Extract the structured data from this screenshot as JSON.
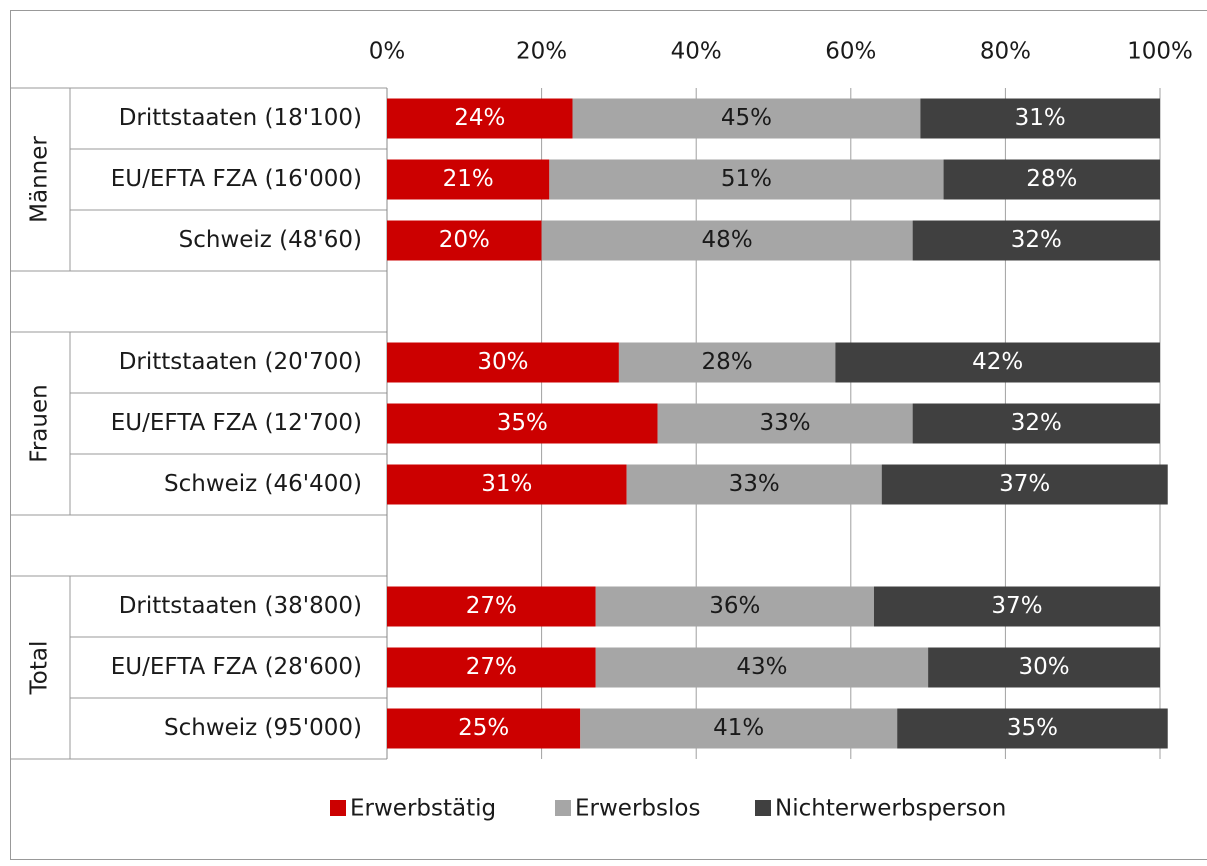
{
  "chart_data": {
    "type": "stacked_barh",
    "categories": [
      "Drittstaaten (18'100)",
      "EU/EFTA FZA (16'000)",
      "Schweiz (48'60)",
      null,
      "Drittstaaten (20'700)",
      "EU/EFTA FZA (12'700)",
      "Schweiz (46'400)",
      null,
      "Drittstaaten (38'800)",
      "EU/EFTA FZA (28'600)",
      "Schweiz (95'000)"
    ],
    "groups": [
      "Männer",
      "Frauen",
      "Total"
    ],
    "series": [
      {
        "name": "Erwerbstätig",
        "color": "#cc0000",
        "label_color": "#ffffff",
        "values": [
          24,
          21,
          20,
          null,
          30,
          35,
          31,
          null,
          27,
          27,
          25
        ],
        "value_labels": [
          "24%",
          "21%",
          "20%",
          null,
          "30%",
          "35%",
          "31%",
          null,
          "27%",
          "27%",
          "25%"
        ]
      },
      {
        "name": "Erwerbslos",
        "color": "#a6a6a6",
        "label_color": "#1a1a1a",
        "values": [
          45,
          51,
          48,
          null,
          28,
          33,
          33,
          null,
          36,
          43,
          41
        ],
        "value_labels": [
          "45%",
          "51%",
          "48%",
          null,
          "28%",
          "33%",
          "33%",
          null,
          "36%",
          "43%",
          "41%"
        ]
      },
      {
        "name": "Nichterwerbsperson",
        "color": "#404040",
        "label_color": "#ffffff",
        "values": [
          31,
          28,
          32,
          null,
          42,
          32,
          37,
          null,
          37,
          30,
          35
        ],
        "value_labels": [
          "31%",
          "28%",
          "32%",
          null,
          "42%",
          "32%",
          "37%",
          null,
          "37%",
          "30%",
          "35%"
        ]
      }
    ],
    "xlim": [
      0,
      100
    ],
    "xticks": [
      {
        "value": 0,
        "label": "0%"
      },
      {
        "value": 20,
        "label": "20%"
      },
      {
        "value": 40,
        "label": "40%"
      },
      {
        "value": 60,
        "label": "60%"
      },
      {
        "value": 80,
        "label": "80%"
      },
      {
        "value": 100,
        "label": "100%"
      }
    ],
    "grid": true,
    "legend": "bottom"
  }
}
